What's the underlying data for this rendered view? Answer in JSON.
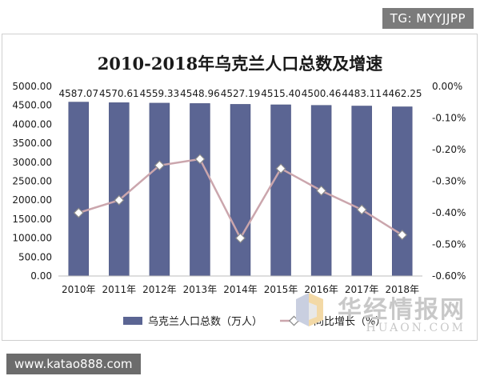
{
  "watermarks": {
    "top_tag": "TG: MYYJJPP",
    "bottom_tag": "www.katao888.com",
    "site_cn": "华经情报网",
    "site_en": "HUAON.COM"
  },
  "colors": {
    "bar": "#5b6593",
    "bar_edge": "#46507c",
    "line": "#cba6ad",
    "marker_fill": "#ffffff"
  },
  "chart_data": {
    "type": "bar",
    "title": "2010-2018年乌克兰人口总数及增速",
    "categories": [
      "2010年",
      "2011年",
      "2012年",
      "2013年",
      "2014年",
      "2015年",
      "2016年",
      "2017年",
      "2018年"
    ],
    "series": [
      {
        "name": "乌克兰人口总数（万人）",
        "type": "bar",
        "axis": "left",
        "values": [
          4587.07,
          4570.61,
          4559.33,
          4548.96,
          4527.19,
          4515.4,
          4500.46,
          4483.11,
          4462.25
        ],
        "labels": [
          "4587.07",
          "4570.61",
          "4559.33",
          "4548.96",
          "4527.19",
          "4515.40",
          "4500.46",
          "4483.11",
          "4462.25"
        ]
      },
      {
        "name": "同比增长（%）",
        "type": "line",
        "axis": "right",
        "values": [
          -0.4,
          -0.36,
          -0.25,
          -0.23,
          -0.48,
          -0.26,
          -0.33,
          -0.39,
          -0.47
        ]
      }
    ],
    "y_left": {
      "min": 0,
      "max": 5000,
      "ticks": [
        0,
        500,
        1000,
        1500,
        2000,
        2500,
        3000,
        3500,
        4000,
        4500,
        5000
      ],
      "tick_labels": [
        "0.00",
        "500.00",
        "1000.00",
        "1500.00",
        "2000.00",
        "2500.00",
        "3000.00",
        "3500.00",
        "4000.00",
        "4500.00",
        "5000.00"
      ]
    },
    "y_right": {
      "min": -0.6,
      "max": 0,
      "ticks": [
        0,
        -0.1,
        -0.2,
        -0.3,
        -0.4,
        -0.5,
        -0.6
      ],
      "tick_labels": [
        "0.00%",
        "-0.10%",
        "-0.20%",
        "-0.30%",
        "-0.40%",
        "-0.50%",
        "-0.60%"
      ]
    },
    "legend_position": "bottom",
    "grid": false
  }
}
